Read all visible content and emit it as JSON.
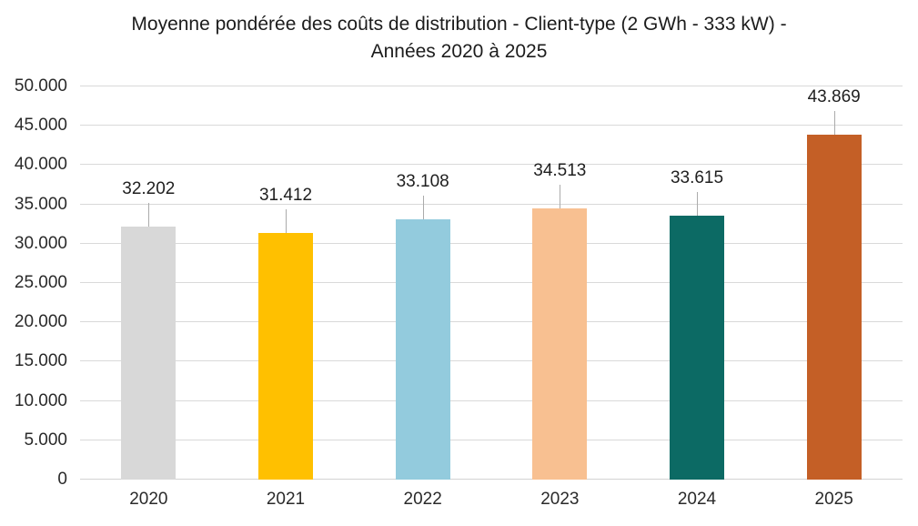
{
  "title_lines": [
    "Moyenne pondérée des coûts de distribution - Client-type (2 GWh - 333 kW) -",
    "Années 2020 à 2025"
  ],
  "chart_data": {
    "type": "bar",
    "title": "Moyenne pondérée des coûts de distribution - Client-type (2 GWh - 333 kW) - Années 2020 à 2025",
    "categories": [
      "2020",
      "2021",
      "2022",
      "2023",
      "2024",
      "2025"
    ],
    "values": [
      32202,
      31412,
      33108,
      34513,
      33615,
      43869
    ],
    "labels": [
      "32.202",
      "31.412",
      "33.108",
      "34.513",
      "33.615",
      "43.869"
    ],
    "bar_colors": [
      "#D8D8D8",
      "#FFC000",
      "#93CBDD",
      "#F8C091",
      "#0C6A64",
      "#C45F26"
    ],
    "xlabel": "",
    "ylabel": "",
    "ylim": [
      0,
      50000
    ],
    "ytick_step": 5000,
    "ytick_labels": [
      "0",
      "5.000",
      "10.000",
      "15.000",
      "20.000",
      "25.000",
      "30.000",
      "35.000",
      "40.000",
      "45.000",
      "50.000"
    ],
    "grid": true,
    "legend": false
  },
  "colors": {
    "background": "#FFFFFF",
    "gridline": "#D9D9D9",
    "axis_line": "#D2D2D2",
    "axis_text": "#2A2A2A",
    "data_label_text": "#1F1F1F",
    "title_text": "#1C1C1C",
    "leader_line": "#ABABAB"
  }
}
